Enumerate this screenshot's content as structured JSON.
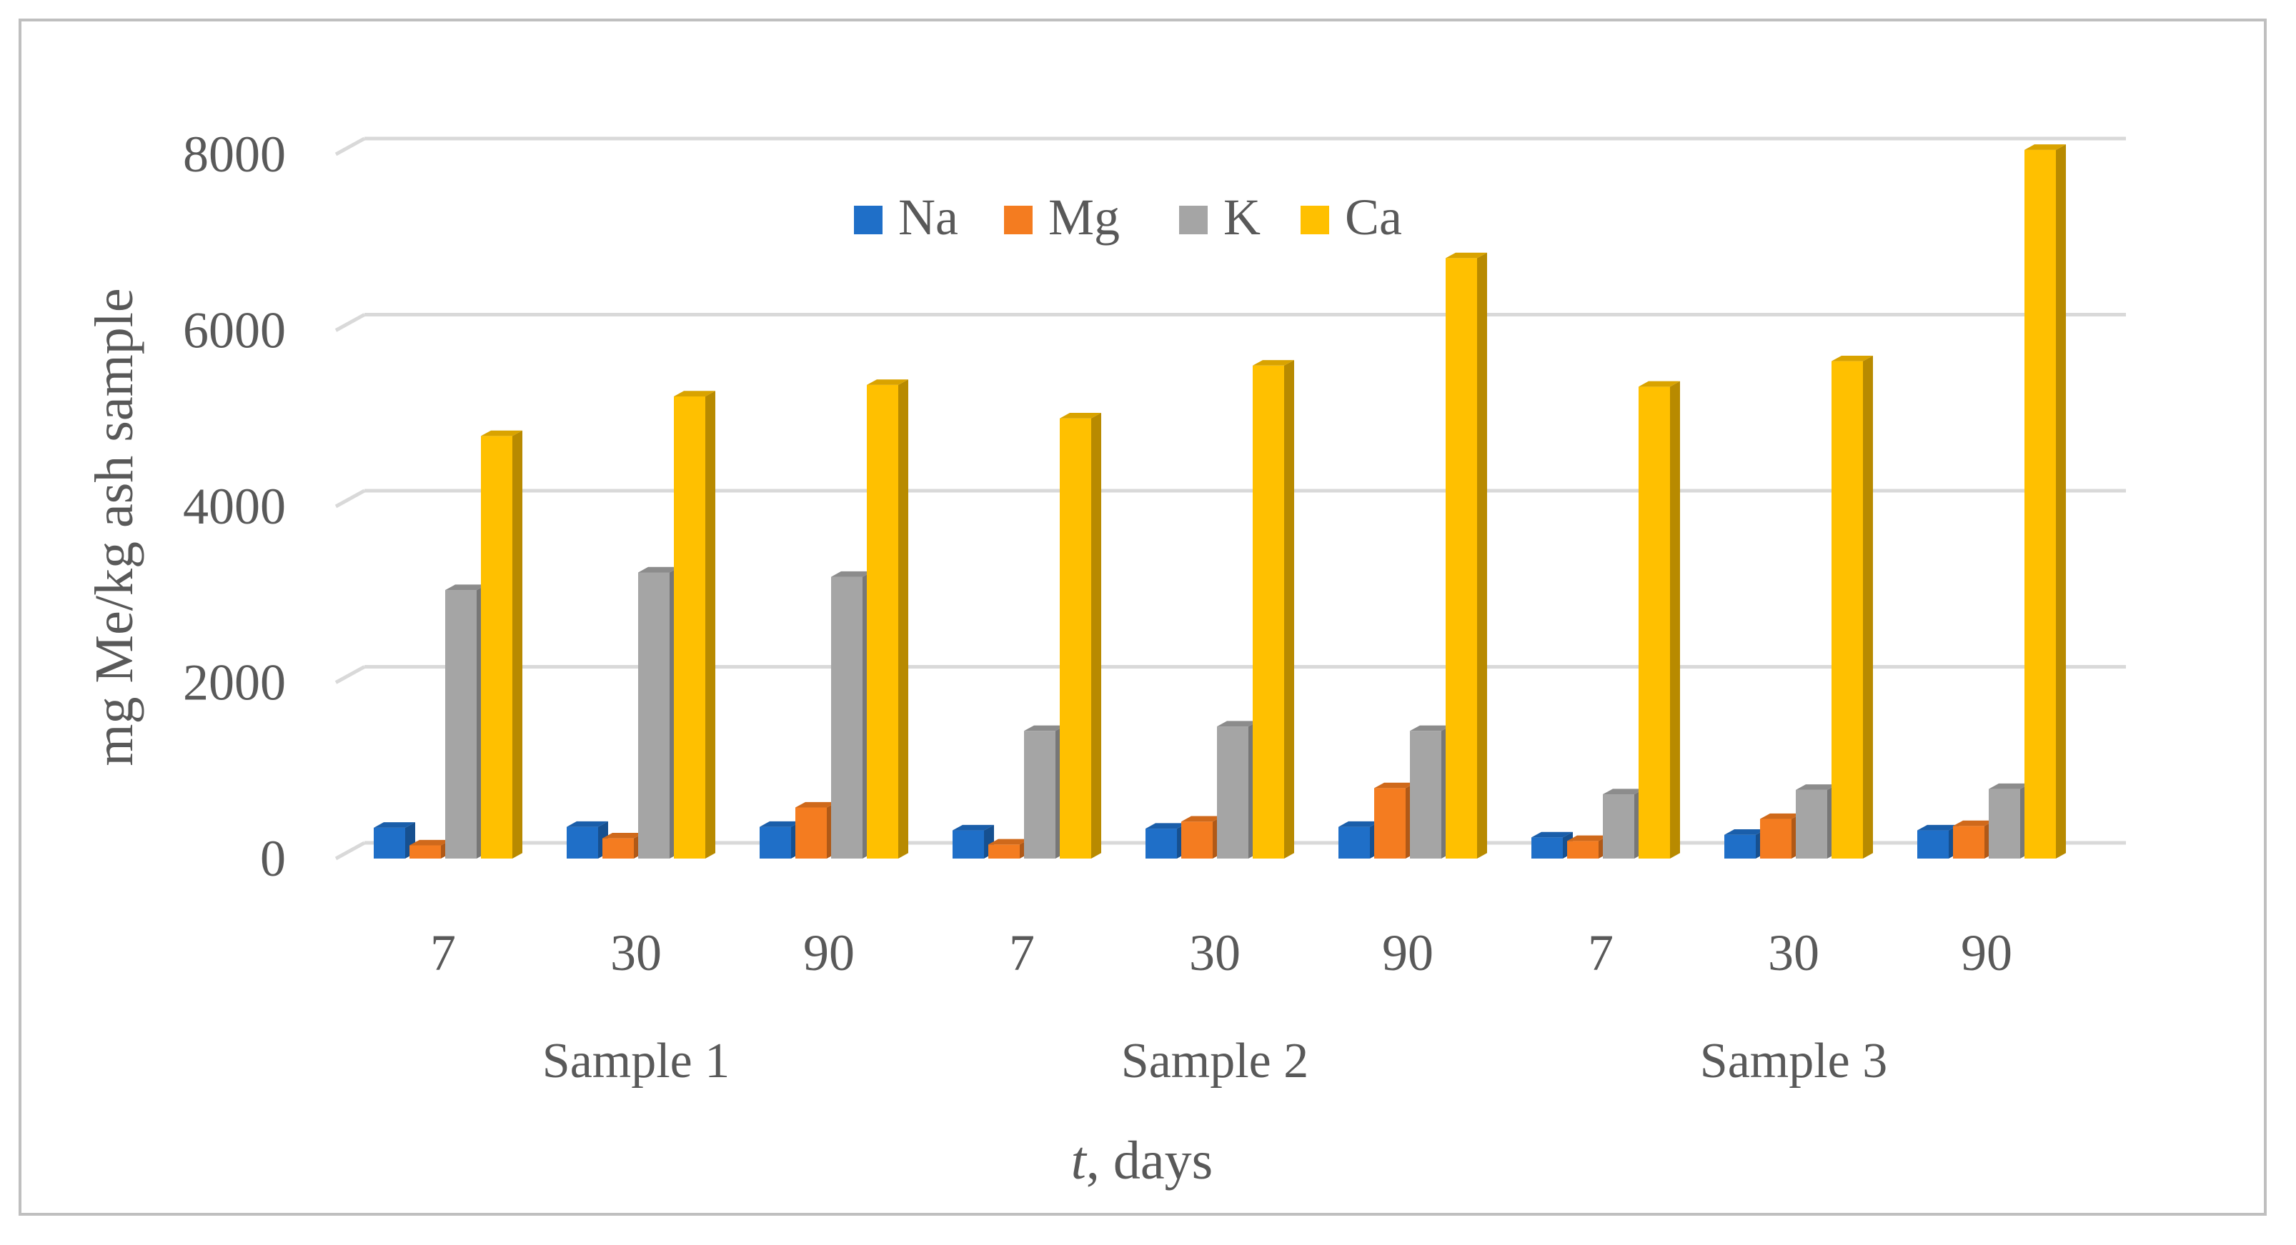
{
  "chart_data": {
    "type": "bar",
    "title": "",
    "ylabel": "mg Me/kg ash sample",
    "xlabel_italic": "t",
    "xlabel_rest": ", days",
    "ylim": [
      0,
      8000
    ],
    "yticks": [
      0,
      2000,
      4000,
      6000,
      8000
    ],
    "yticklabels": [
      "0",
      "2000",
      "4000",
      "6000",
      "8000"
    ],
    "categories": [
      "7",
      "30",
      "90",
      "7",
      "30",
      "90",
      "7",
      "30",
      "90"
    ],
    "groups": [
      {
        "label": "Sample 1",
        "count": 3
      },
      {
        "label": "Sample 2",
        "count": 3
      },
      {
        "label": "Sample 3",
        "count": 3
      }
    ],
    "legend": "top-center",
    "series": [
      {
        "name": "Na",
        "color": "#1f6fc8",
        "values": [
          350,
          360,
          360,
          320,
          340,
          360,
          240,
          270,
          320
        ]
      },
      {
        "name": "Mg",
        "color": "#f47c20",
        "values": [
          150,
          230,
          580,
          160,
          420,
          800,
          200,
          450,
          370
        ]
      },
      {
        "name": "K",
        "color": "#a5a5a5",
        "values": [
          3050,
          3250,
          3200,
          1450,
          1500,
          1450,
          730,
          780,
          790
        ]
      },
      {
        "name": "Ca",
        "color": "#ffc000",
        "values": [
          4800,
          5250,
          5380,
          5000,
          5600,
          6820,
          5360,
          5650,
          8050
        ]
      }
    ]
  }
}
